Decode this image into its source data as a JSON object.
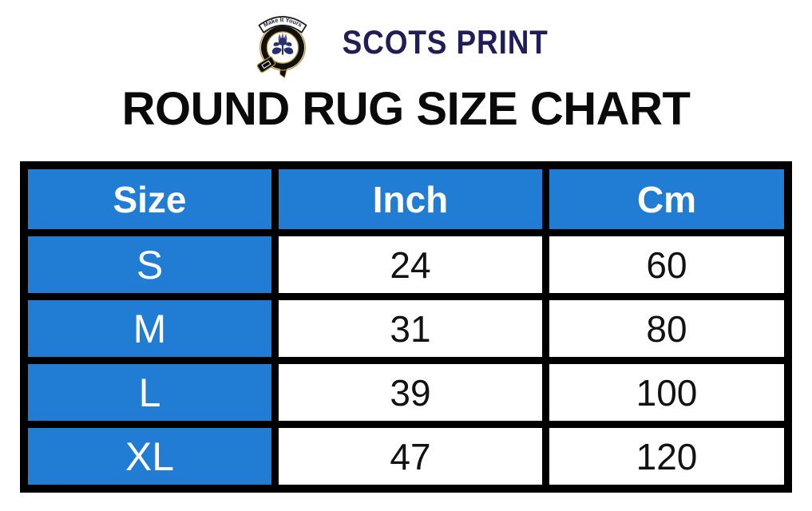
{
  "brand": {
    "name": "SCOTS PRINT",
    "badge_motto": "Make It Yours",
    "navy": "#211e55",
    "gold": "#b8912e"
  },
  "title": "ROUND RUG SIZE CHART",
  "table": {
    "accent_blue": "#217cd4",
    "border_color": "#000000",
    "columns": [
      "Size",
      "Inch",
      "Cm"
    ],
    "rows": [
      {
        "size": "S",
        "inch": "24",
        "cm": "60"
      },
      {
        "size": "M",
        "inch": "31",
        "cm": "80"
      },
      {
        "size": "L",
        "inch": "39",
        "cm": "100"
      },
      {
        "size": "XL",
        "inch": "47",
        "cm": "120"
      }
    ]
  },
  "chart_data": {
    "type": "table",
    "title": "ROUND RUG SIZE CHART",
    "columns": [
      "Size",
      "Inch",
      "Cm"
    ],
    "rows": [
      [
        "S",
        24,
        60
      ],
      [
        "M",
        31,
        80
      ],
      [
        "L",
        39,
        100
      ],
      [
        "XL",
        47,
        120
      ]
    ]
  }
}
